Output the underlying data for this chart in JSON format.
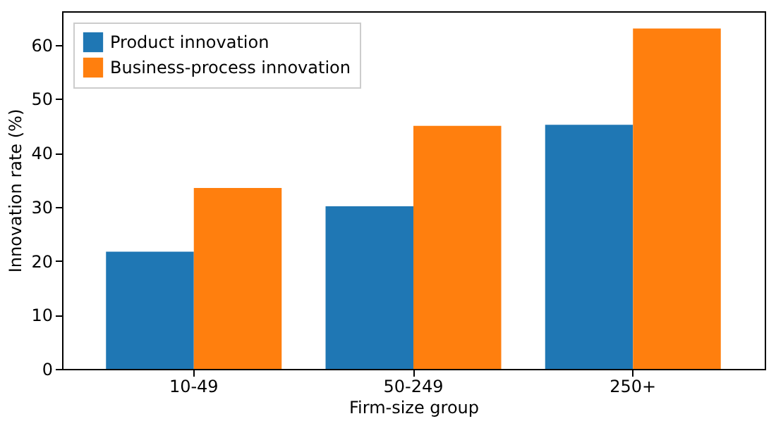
{
  "chart_data": {
    "type": "bar",
    "xlabel": "Firm-size group",
    "ylabel": "Innovation rate (%)",
    "categories": [
      "10-49",
      "50-249",
      "250+"
    ],
    "series": [
      {
        "name": "Product innovation",
        "color": "#1f77b4",
        "values": [
          21.7,
          30.1,
          45.2
        ]
      },
      {
        "name": "Business-process innovation",
        "color": "#ff7f0e",
        "values": [
          33.5,
          45.0,
          63.0
        ]
      }
    ],
    "ylim": [
      0,
      66.2
    ],
    "yticks": [
      0,
      10,
      20,
      30,
      40,
      50,
      60
    ],
    "grid": false,
    "legend": "top left"
  }
}
